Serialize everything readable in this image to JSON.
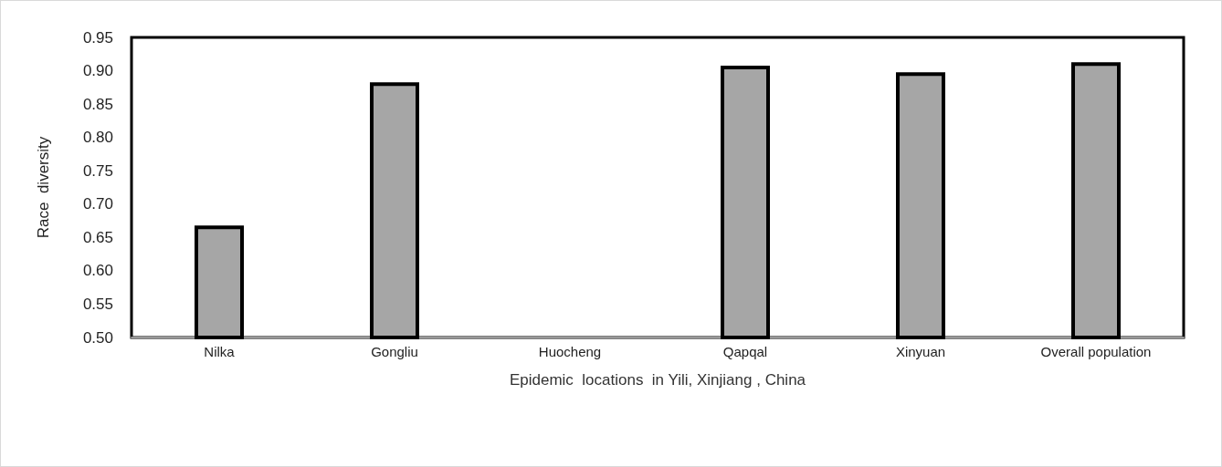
{
  "chart_data": {
    "type": "bar",
    "xlabel": "Epidemic  locations  in Yili, Xinjiang , China",
    "ylabel": "Race  diversity",
    "categories": [
      "Nilka",
      "Gongliu",
      "Huocheng",
      "Qapqal",
      "Xinyuan",
      "Overall population"
    ],
    "values": [
      0.665,
      0.88,
      null,
      0.905,
      0.895,
      0.91
    ],
    "color": "#a6a6a6",
    "ylim": [
      0.5,
      0.95
    ],
    "yticks": [
      {
        "value": 0.5,
        "label": "0.50"
      },
      0.55,
      {
        "value": 0.6,
        "label": "0.60"
      },
      0.65,
      {
        "value": 0.7,
        "label": "0.70"
      },
      0.75,
      {
        "value": 0.8,
        "label": "0.80"
      },
      0.85,
      {
        "value": 0.9,
        "label": "0.90"
      },
      0.95
    ],
    "grid": false
  }
}
